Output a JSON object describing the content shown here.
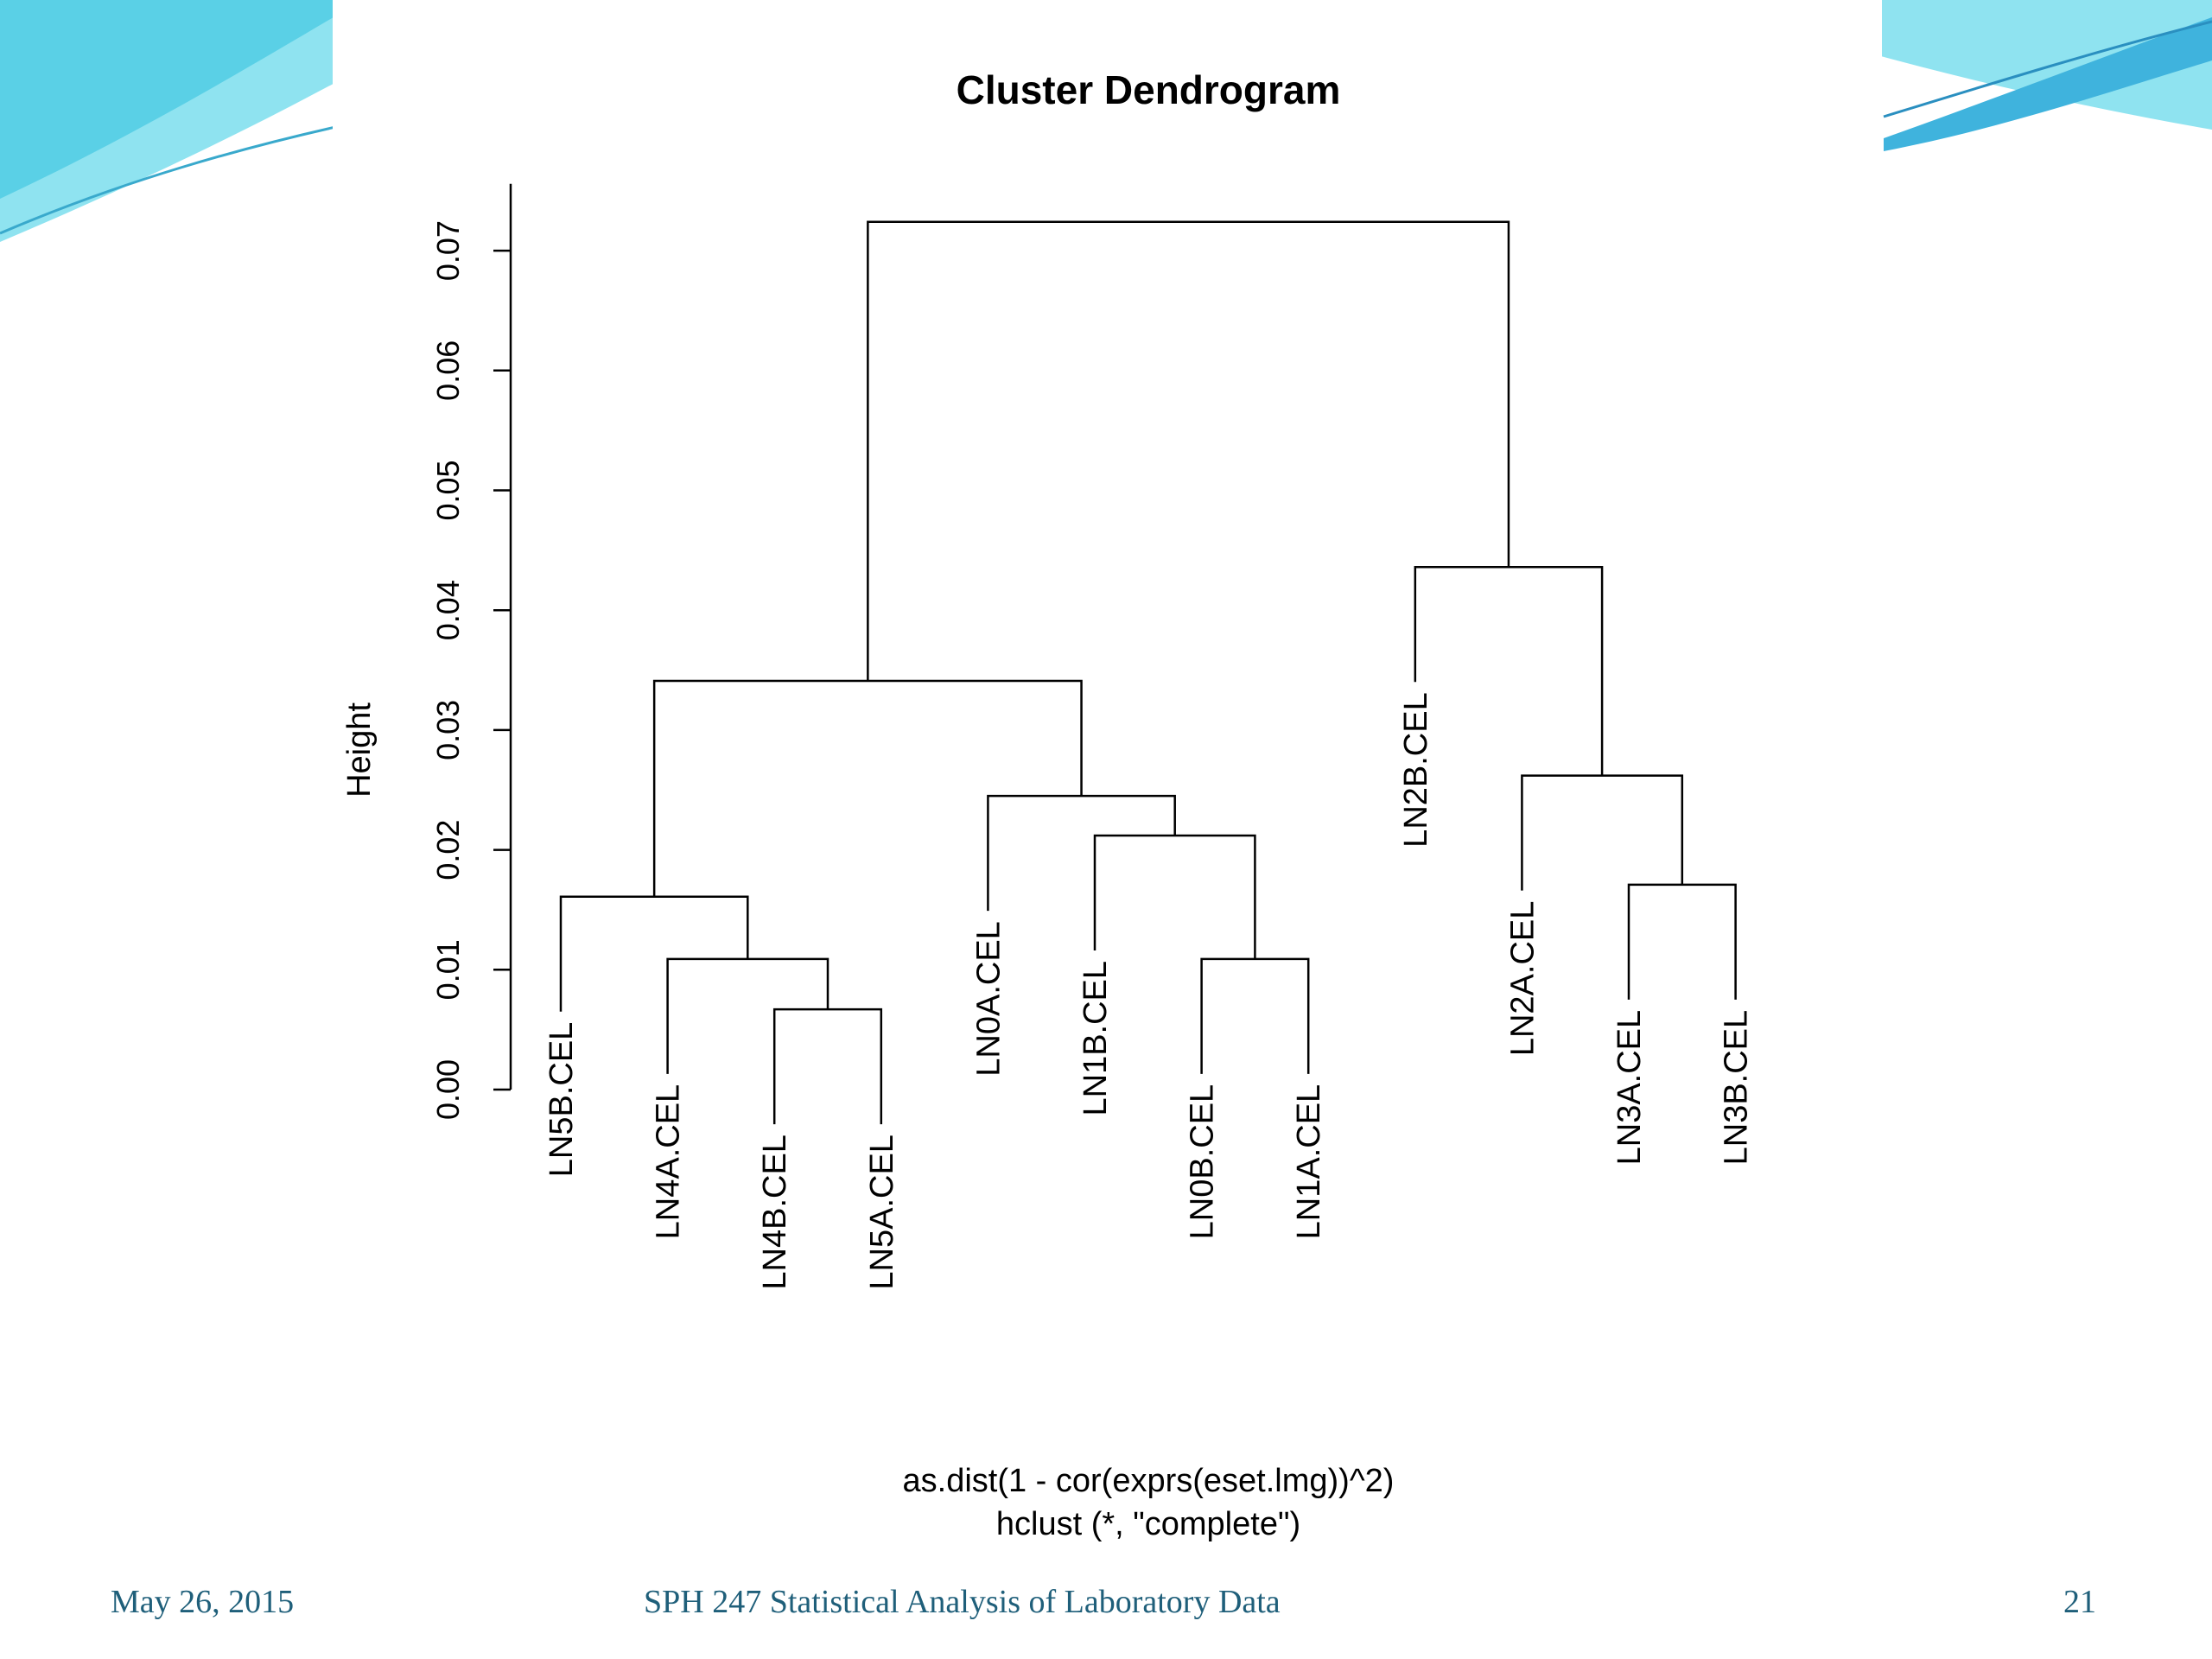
{
  "slide": {
    "footer_date": "May 26, 2015",
    "footer_course": "SPH 247 Statistical Analysis of Laboratory Data",
    "footer_page": "21",
    "accent_color": "#5ad0e6",
    "footer_color": "#1f5f7a"
  },
  "chart_data": {
    "type": "dendrogram",
    "title": "Cluster Dendrogram",
    "ylabel": "Height",
    "xlabel_lines": [
      "as.dist(1 - cor(exprs(eset.lmg))^2)",
      "hclust (*, \"complete\")"
    ],
    "ylim": [
      0,
      0.075
    ],
    "yticks": [
      0.0,
      0.01,
      0.02,
      0.03,
      0.04,
      0.05,
      0.06,
      0.07
    ],
    "ytick_labels": [
      "0.00",
      "0.01",
      "0.02",
      "0.03",
      "0.04",
      "0.05",
      "0.06",
      "0.07"
    ],
    "leaf_order": [
      "LN5B.CEL",
      "LN4A.CEL",
      "LN4B.CEL",
      "LN5A.CEL",
      "LN0A.CEL",
      "LN1B.CEL",
      "LN0B.CEL",
      "LN1A.CEL",
      "LN2B.CEL",
      "LN2A.CEL",
      "LN3A.CEL",
      "LN3B.CEL"
    ],
    "merges": [
      {
        "left": "LN4B.CEL",
        "right": "LN5A.CEL",
        "height": 0.0067
      },
      {
        "left": "LN4A.CEL",
        "right": "m1",
        "height": 0.0109
      },
      {
        "left": "LN5B.CEL",
        "right": "m2",
        "height": 0.0161
      },
      {
        "left": "LN0B.CEL",
        "right": "LN1A.CEL",
        "height": 0.0109
      },
      {
        "left": "LN1B.CEL",
        "right": "m4",
        "height": 0.0212
      },
      {
        "left": "LN0A.CEL",
        "right": "m5",
        "height": 0.0245
      },
      {
        "left": "m3",
        "right": "m6",
        "height": 0.0341
      },
      {
        "left": "LN3A.CEL",
        "right": "LN3B.CEL",
        "height": 0.0171
      },
      {
        "left": "LN2A.CEL",
        "right": "m8",
        "height": 0.0262
      },
      {
        "left": "LN2B.CEL",
        "right": "m9",
        "height": 0.0436
      },
      {
        "left": "m7",
        "right": "m10",
        "height": 0.0724
      }
    ]
  }
}
